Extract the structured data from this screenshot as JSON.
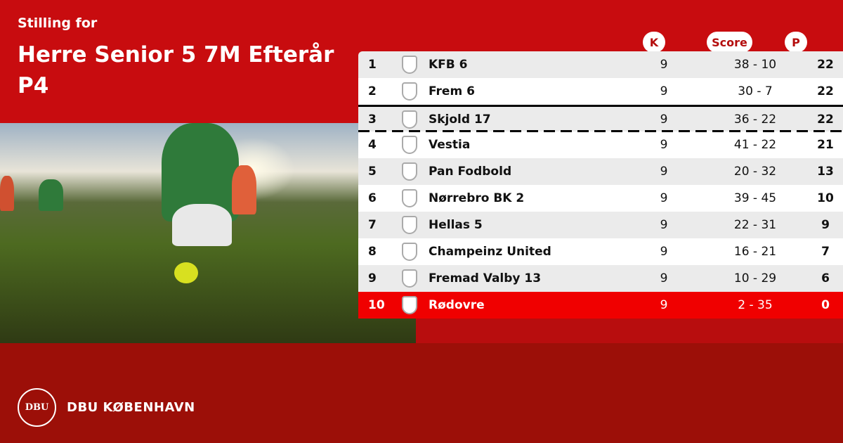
{
  "header": {
    "subtitle": "Stilling for",
    "title": "Herre Senior 5 7M Efterår P4"
  },
  "columns": {
    "k": "K",
    "score": "Score",
    "p": "P"
  },
  "colors": {
    "primary": "#c80c0f",
    "footer": "#9c0f08",
    "relegation": "#f00000"
  },
  "rows": [
    {
      "pos": "1",
      "team": "KFB 6",
      "k": "9",
      "score": "38 - 10",
      "p": "22"
    },
    {
      "pos": "2",
      "team": "Frem 6",
      "k": "9",
      "score": "30 - 7",
      "p": "22"
    },
    {
      "pos": "3",
      "team": "Skjold 17",
      "k": "9",
      "score": "36 - 22",
      "p": "22"
    },
    {
      "pos": "4",
      "team": "Vestia",
      "k": "9",
      "score": "41 - 22",
      "p": "21"
    },
    {
      "pos": "5",
      "team": "Pan Fodbold",
      "k": "9",
      "score": "20 - 32",
      "p": "13"
    },
    {
      "pos": "6",
      "team": "Nørrebro BK 2",
      "k": "9",
      "score": "39 - 45",
      "p": "10"
    },
    {
      "pos": "7",
      "team": "Hellas 5",
      "k": "9",
      "score": "22 - 31",
      "p": "9"
    },
    {
      "pos": "8",
      "team": "Champeinz United",
      "k": "9",
      "score": "16 - 21",
      "p": "7"
    },
    {
      "pos": "9",
      "team": "Fremad Valby 13",
      "k": "9",
      "score": "10 - 29",
      "p": "6"
    },
    {
      "pos": "10",
      "team": "Rødovre",
      "k": "9",
      "score": "2 - 35",
      "p": "0"
    }
  ],
  "footer": {
    "brand": "DBU KØBENHAVN",
    "logo_text": "DBU"
  }
}
